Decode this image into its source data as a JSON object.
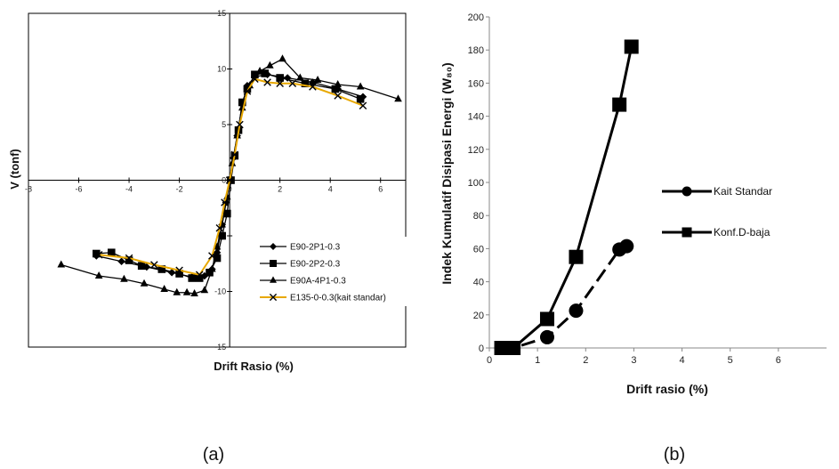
{
  "panels": {
    "a": "(a)",
    "b": "(b)"
  },
  "chart_data": [
    {
      "type": "line",
      "xlabel": "Drift Rasio (%)",
      "ylabel": "V (tonf)",
      "xlim": [
        -8,
        7
      ],
      "ylim": [
        -15,
        15
      ],
      "x_ticks": [
        "-8",
        "-6",
        "-4",
        "-2",
        "0",
        "2",
        "4",
        "6"
      ],
      "y_ticks": [
        "-15",
        "-10",
        "-5",
        "0",
        "5",
        "10",
        "15"
      ],
      "legend_position": "lower-right",
      "series": [
        {
          "name": "E90-2P1-0.3",
          "marker": "diamond",
          "color": "#000000",
          "x": [
            -5.3,
            -4.3,
            -3.3,
            -2.3,
            -1.5,
            -1.0,
            -0.7,
            -0.5,
            -0.3,
            -0.15,
            0,
            0.15,
            0.3,
            0.5,
            0.7,
            1.0,
            1.5,
            2.3,
            3.3,
            4.3,
            5.3
          ],
          "y": [
            -6.8,
            -7.3,
            -7.8,
            -8.3,
            -8.7,
            -8.6,
            -8.0,
            -6.5,
            -4.0,
            -2.0,
            0,
            2.0,
            4.0,
            6.8,
            8.5,
            9.3,
            9.5,
            9.2,
            8.8,
            8.2,
            7.5
          ]
        },
        {
          "name": "E90-2P2-0.3",
          "marker": "square",
          "color": "#000000",
          "x": [
            -5.3,
            -4.7,
            -4.0,
            -3.5,
            -2.7,
            -2.0,
            -1.5,
            -1.2,
            -0.8,
            -0.5,
            -0.3,
            -0.1,
            0.05,
            0.2,
            0.35,
            0.5,
            0.7,
            1.0,
            1.4,
            2.0,
            3.0,
            4.2,
            5.2
          ],
          "y": [
            -6.6,
            -6.5,
            -7.2,
            -7.7,
            -8.0,
            -8.4,
            -8.8,
            -8.8,
            -8.3,
            -7.0,
            -5.0,
            -3.0,
            0,
            2.2,
            4.5,
            7.0,
            8.2,
            9.5,
            9.6,
            9.2,
            8.7,
            8.2,
            7.3
          ]
        },
        {
          "name": "E90A-4P1-0.3",
          "marker": "triangle",
          "color": "#000000",
          "x": [
            -6.7,
            -5.2,
            -4.2,
            -3.4,
            -2.6,
            -2.1,
            -1.7,
            -1.4,
            -1.0,
            -0.7,
            -0.5,
            -0.3,
            -0.1,
            0.1,
            0.3,
            0.5,
            0.8,
            1.2,
            1.6,
            2.1,
            2.8,
            3.5,
            4.3,
            5.2,
            6.7
          ],
          "y": [
            -7.6,
            -8.6,
            -8.9,
            -9.3,
            -9.8,
            -10.1,
            -10.1,
            -10.2,
            -9.9,
            -8.0,
            -6.0,
            -4.0,
            -1.5,
            1.5,
            4.0,
            6.5,
            8.5,
            9.8,
            10.3,
            10.9,
            9.2,
            9.0,
            8.6,
            8.4,
            7.3
          ]
        },
        {
          "name": "E135-0-0.3(kait standar)",
          "marker": "x",
          "color": "#000000",
          "line_color": "#e8a800",
          "x": [
            -5.2,
            -4.0,
            -3.0,
            -2.0,
            -1.2,
            -0.7,
            -0.4,
            -0.2,
            0,
            0.2,
            0.4,
            0.7,
            1.0,
            1.5,
            2.0,
            2.5,
            3.3,
            4.3,
            5.3
          ],
          "y": [
            -6.7,
            -7.0,
            -7.6,
            -8.1,
            -8.5,
            -6.8,
            -4.3,
            -2.0,
            0,
            2.3,
            5.0,
            8.0,
            9.1,
            8.8,
            8.7,
            8.7,
            8.4,
            7.6,
            6.7
          ]
        }
      ]
    },
    {
      "type": "line",
      "xlabel": "Drift rasio  (%)",
      "ylabel": "Indek Kumulatif Disipasi  Energi (W₈₀)",
      "xlim": [
        0,
        7
      ],
      "ylim": [
        0,
        200
      ],
      "x_ticks": [
        "0",
        "1",
        "2",
        "3",
        "4",
        "5",
        "6"
      ],
      "y_ticks": [
        "0",
        "20",
        "40",
        "60",
        "80",
        "100",
        "120",
        "140",
        "160",
        "180",
        "200"
      ],
      "legend_position": "right",
      "series": [
        {
          "name": "Kait Standar",
          "marker": "circle",
          "dash": true,
          "x": [
            0.25,
            0.5,
            1.2,
            1.8,
            2.7,
            2.85
          ],
          "y": [
            0,
            0,
            6.5,
            22.5,
            59.5,
            61.5
          ]
        },
        {
          "name": "Konf.D-baja",
          "marker": "square",
          "dash": false,
          "x": [
            0.25,
            0.5,
            1.2,
            1.8,
            2.7,
            2.95
          ],
          "y": [
            0,
            0,
            17.5,
            55,
            147,
            182
          ]
        }
      ]
    }
  ]
}
